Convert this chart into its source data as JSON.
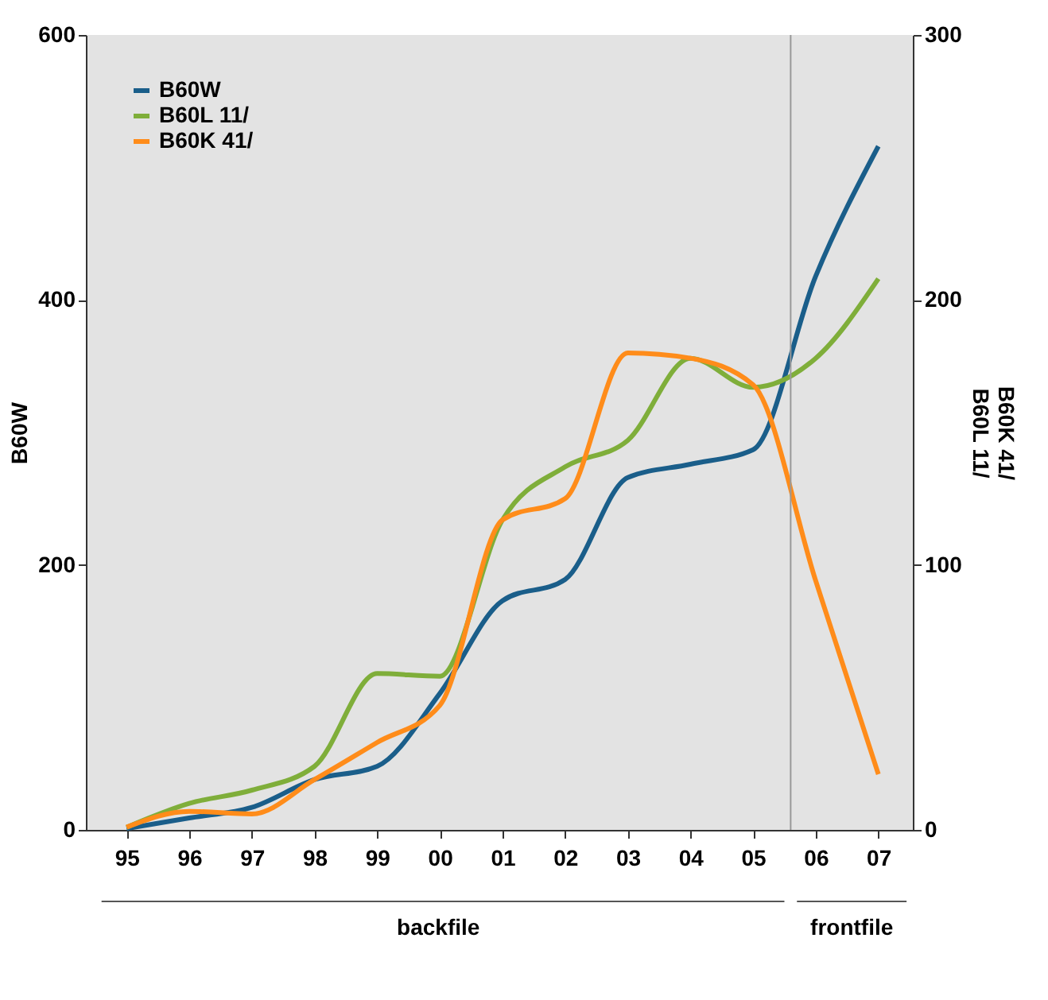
{
  "chart_data": {
    "type": "line",
    "x": [
      1995,
      1996,
      1997,
      1998,
      1999,
      2000,
      2001,
      2002,
      2003,
      2004,
      2005,
      2006,
      2007
    ],
    "xlim": [
      1994.35,
      2007.55
    ],
    "xticks": [
      {
        "value": 1995,
        "label": "95"
      },
      {
        "value": 1996,
        "label": "96"
      },
      {
        "value": 1997,
        "label": "97"
      },
      {
        "value": 1998,
        "label": "98"
      },
      {
        "value": 1999,
        "label": "99"
      },
      {
        "value": 2000,
        "label": "00"
      },
      {
        "value": 2001,
        "label": "01"
      },
      {
        "value": 2002,
        "label": "02"
      },
      {
        "value": 2003,
        "label": "03"
      },
      {
        "value": 2004,
        "label": "04"
      },
      {
        "value": 2005,
        "label": "05"
      },
      {
        "value": 2006,
        "label": "06"
      },
      {
        "value": 2007,
        "label": "07"
      }
    ],
    "ylabel": "B60W",
    "y2label": "B60K 41/\nB60L 11/",
    "ylim": [
      0,
      600
    ],
    "yticks": [
      0,
      200,
      400,
      600
    ],
    "y2lim": [
      0,
      300
    ],
    "y2ticks": [
      0,
      100,
      200,
      300
    ],
    "series": [
      {
        "name": "B60W",
        "color": "#1a5e8a",
        "values": [
          1,
          9,
          17,
          38,
          48,
          103,
          173,
          189,
          266,
          276,
          287,
          418,
          516
        ]
      },
      {
        "name": "B60L 11/",
        "color": "#7fae3a",
        "axis": "y2",
        "values": [
          1,
          10,
          15,
          24,
          59,
          58,
          117,
          137,
          147,
          178,
          167,
          178,
          208
        ]
      },
      {
        "name": "B60K 41/",
        "color": "#ff8c1a",
        "axis": "y2",
        "values": [
          1,
          7,
          6,
          19,
          33,
          47,
          117,
          125,
          180,
          178,
          168,
          94,
          21
        ]
      }
    ],
    "ref_lines": [
      {
        "axis": "x",
        "value": 2005.6,
        "color": "#999999"
      }
    ],
    "annotations": [
      "backfile",
      "frontfile"
    ],
    "legend": "top left",
    "grid": false,
    "line_style": "solid",
    "marker": "none"
  }
}
